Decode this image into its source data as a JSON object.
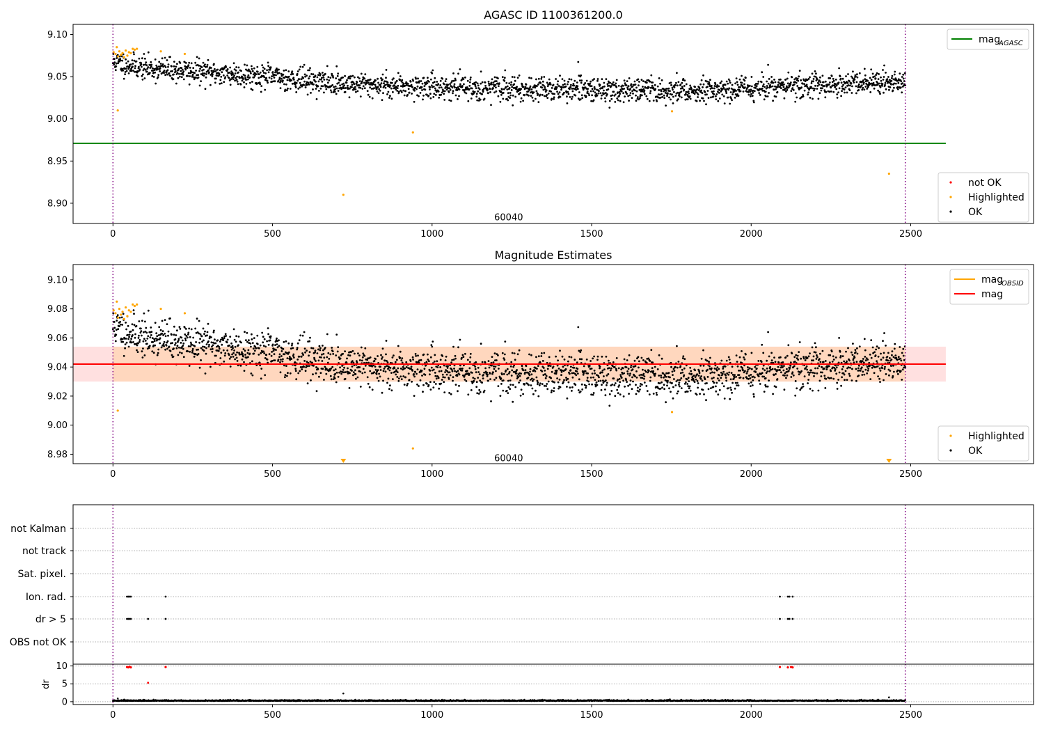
{
  "chart_data": [
    {
      "type": "scatter",
      "title": "AGASC ID 1100361200.0",
      "xlim": [
        -125,
        2885
      ],
      "ylim": [
        8.876,
        9.112
      ],
      "xticks": [
        0,
        500,
        1000,
        1500,
        2000,
        2500
      ],
      "yticks": [
        8.9,
        8.95,
        9.0,
        9.05,
        9.1
      ],
      "grid": false,
      "legend_top": {
        "placement": "top-right",
        "entries": [
          {
            "name": "mag",
            "sub": "AGASC",
            "color": "#008000"
          }
        ]
      },
      "legend_bottom": {
        "placement": "bottom-right",
        "entries": [
          {
            "name": "not OK",
            "color": "#ff0000"
          },
          {
            "name": "Highlighted",
            "color": "#ffa500"
          },
          {
            "name": "OK",
            "color": "#000000"
          }
        ]
      },
      "mag_agasc": {
        "value": 8.971,
        "x_range": [
          -125,
          2610
        ],
        "color": "#008000"
      },
      "vlines": [
        0,
        2483
      ],
      "annotation": {
        "text": "60040",
        "x": 1240,
        "y": 8.884
      },
      "ok_series": {
        "n": 2300,
        "x_range": [
          0,
          2483
        ],
        "trend": [
          [
            0,
            9.068
          ],
          [
            100,
            9.06
          ],
          [
            300,
            9.055
          ],
          [
            500,
            9.05
          ],
          [
            700,
            9.042
          ],
          [
            900,
            9.039
          ],
          [
            1200,
            9.036
          ],
          [
            1500,
            9.035
          ],
          [
            1800,
            9.033
          ],
          [
            2000,
            9.037
          ],
          [
            2200,
            9.04
          ],
          [
            2483,
            9.043
          ]
        ],
        "scatter": 0.007
      },
      "highlighted": [
        [
          2,
          9.079
        ],
        [
          8,
          9.077
        ],
        [
          12,
          9.085
        ],
        [
          16,
          9.074
        ],
        [
          20,
          9.08
        ],
        [
          25,
          9.076
        ],
        [
          30,
          9.078
        ],
        [
          35,
          9.073
        ],
        [
          40,
          9.081
        ],
        [
          45,
          9.075
        ],
        [
          50,
          9.079
        ],
        [
          56,
          9.078
        ],
        [
          62,
          9.083
        ],
        [
          68,
          9.082
        ],
        [
          75,
          9.083
        ],
        [
          15,
          9.01
        ],
        [
          150,
          9.08
        ],
        [
          225,
          9.077
        ],
        [
          722,
          8.91
        ],
        [
          940,
          8.984
        ],
        [
          1752,
          9.009
        ],
        [
          2432,
          8.935
        ]
      ]
    },
    {
      "type": "scatter",
      "title": "Magnitude Estimates",
      "xlim": [
        -125,
        2885
      ],
      "ylim": [
        8.9735,
        9.1105
      ],
      "xticks": [
        0,
        500,
        1000,
        1500,
        2000,
        2500
      ],
      "yticks": [
        8.98,
        9.0,
        9.02,
        9.04,
        9.06,
        9.08,
        9.1
      ],
      "grid": false,
      "legend_top": {
        "placement": "top-right",
        "entries": [
          {
            "name": "mag",
            "sub": "OBSID",
            "color": "#ffa500"
          },
          {
            "name": "mag",
            "sub": "",
            "color": "#ff0000"
          }
        ]
      },
      "legend_bottom": {
        "placement": "bottom-right",
        "entries": [
          {
            "name": "Highlighted",
            "color": "#ffa500"
          },
          {
            "name": "OK",
            "color": "#000000"
          }
        ]
      },
      "mag": {
        "value": 9.042,
        "band": [
          9.03,
          9.054
        ],
        "x_range": [
          -125,
          2610
        ],
        "color": "#ff0000"
      },
      "mag_obsid_band": {
        "range": [
          9.03,
          9.054
        ],
        "x_range": [
          0,
          2483
        ]
      },
      "vlines": [
        0,
        2483
      ],
      "annotation": {
        "text": "60040",
        "x": 1240,
        "y": 8.9775
      },
      "ok_series": {
        "n": 2300,
        "x_range": [
          0,
          2483
        ],
        "trend": [
          [
            0,
            9.068
          ],
          [
            100,
            9.06
          ],
          [
            300,
            9.055
          ],
          [
            500,
            9.05
          ],
          [
            700,
            9.042
          ],
          [
            900,
            9.039
          ],
          [
            1200,
            9.036
          ],
          [
            1500,
            9.035
          ],
          [
            1800,
            9.033
          ],
          [
            2000,
            9.037
          ],
          [
            2200,
            9.04
          ],
          [
            2483,
            9.043
          ]
        ],
        "scatter": 0.007
      },
      "highlighted": [
        [
          2,
          9.079
        ],
        [
          8,
          9.077
        ],
        [
          12,
          9.085
        ],
        [
          16,
          9.074
        ],
        [
          20,
          9.08
        ],
        [
          25,
          9.076
        ],
        [
          30,
          9.078
        ],
        [
          35,
          9.073
        ],
        [
          40,
          9.081
        ],
        [
          45,
          9.075
        ],
        [
          50,
          9.079
        ],
        [
          56,
          9.078
        ],
        [
          62,
          9.083
        ],
        [
          68,
          9.082
        ],
        [
          75,
          9.083
        ],
        [
          15,
          9.01
        ],
        [
          150,
          9.08
        ],
        [
          225,
          9.077
        ],
        [
          940,
          8.984
        ],
        [
          1752,
          9.009
        ]
      ],
      "highlighted_clipped": [
        [
          722,
          8.9735
        ],
        [
          2432,
          8.9735
        ]
      ]
    },
    {
      "type": "scatter",
      "title": "",
      "xlim": [
        -125,
        2885
      ],
      "categories": [
        "not Kalman",
        "not track",
        "Sat. pixel.",
        "Ion. rad.",
        "dr > 5",
        "OBS not OK"
      ],
      "flags": {
        "Ion. rad.": [
          44,
          48,
          52,
          56,
          165,
          2090,
          2115,
          2120,
          2130
        ],
        "dr > 5": [
          44,
          48,
          52,
          56,
          110,
          165,
          2090,
          2115,
          2120,
          2130
        ]
      },
      "vlines": [
        0,
        2483
      ]
    },
    {
      "type": "scatter",
      "title": "",
      "ylabel": "dr",
      "xlim": [
        -125,
        2885
      ],
      "ylim": [
        -0.8,
        10.5
      ],
      "xticks": [
        0,
        500,
        1000,
        1500,
        2000,
        2500
      ],
      "yticks": [
        0,
        5,
        10
      ],
      "dr_high": [
        [
          44,
          9.7
        ],
        [
          48,
          9.6
        ],
        [
          52,
          9.8
        ],
        [
          56,
          9.6
        ],
        [
          165,
          9.7
        ],
        [
          2090,
          9.7
        ],
        [
          2115,
          9.6
        ],
        [
          2125,
          9.7
        ],
        [
          2130,
          9.6
        ]
      ],
      "dr_mid": [
        [
          110,
          5.3
        ]
      ],
      "dr_other": [
        [
          722,
          2.3
        ],
        [
          2432,
          1.2
        ],
        [
          15,
          0.9
        ],
        [
          35,
          0.6
        ]
      ],
      "dr_baseline": {
        "n": 2300,
        "x_range": [
          0,
          2483
        ],
        "level": 0.2
      },
      "vlines": [
        0,
        2483
      ]
    }
  ]
}
